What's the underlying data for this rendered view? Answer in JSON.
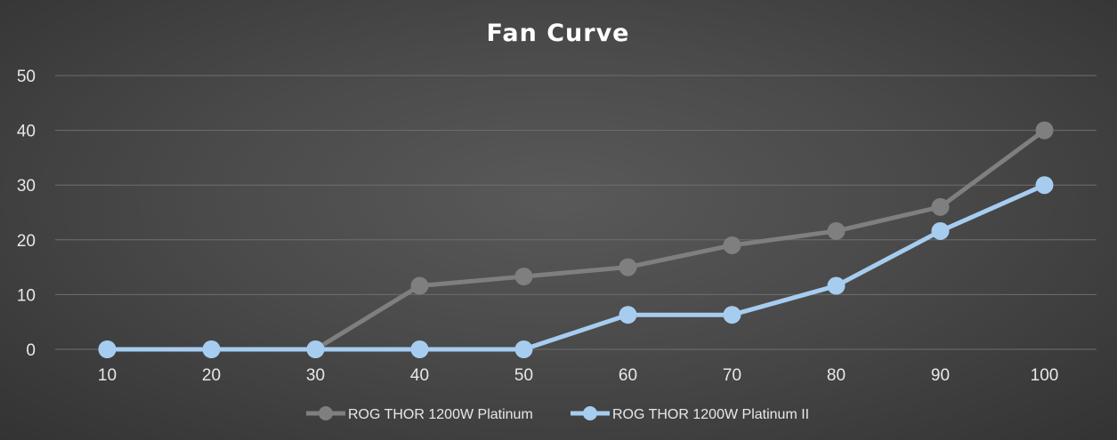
{
  "chart_data": {
    "type": "line",
    "title": "Fan Curve",
    "xlabel": "",
    "ylabel": "",
    "categories": [
      "10",
      "20",
      "30",
      "40",
      "50",
      "60",
      "70",
      "80",
      "90",
      "100"
    ],
    "y_ticks": [
      "0",
      "10",
      "20",
      "30",
      "40",
      "50"
    ],
    "ylim": [
      0,
      50
    ],
    "grid": true,
    "legend_position": "bottom-center",
    "series": [
      {
        "name": "ROG THOR 1200W Platinum",
        "color": "#7f7f7f",
        "values": [
          0,
          0,
          0,
          11.6,
          13.3,
          15,
          19,
          21.6,
          26,
          40
        ]
      },
      {
        "name": "ROG THOR 1200W Platinum II",
        "color": "#a6cdf0",
        "values": [
          0,
          0,
          0,
          0,
          0,
          6.3,
          6.3,
          11.6,
          21.6,
          30
        ]
      }
    ]
  }
}
